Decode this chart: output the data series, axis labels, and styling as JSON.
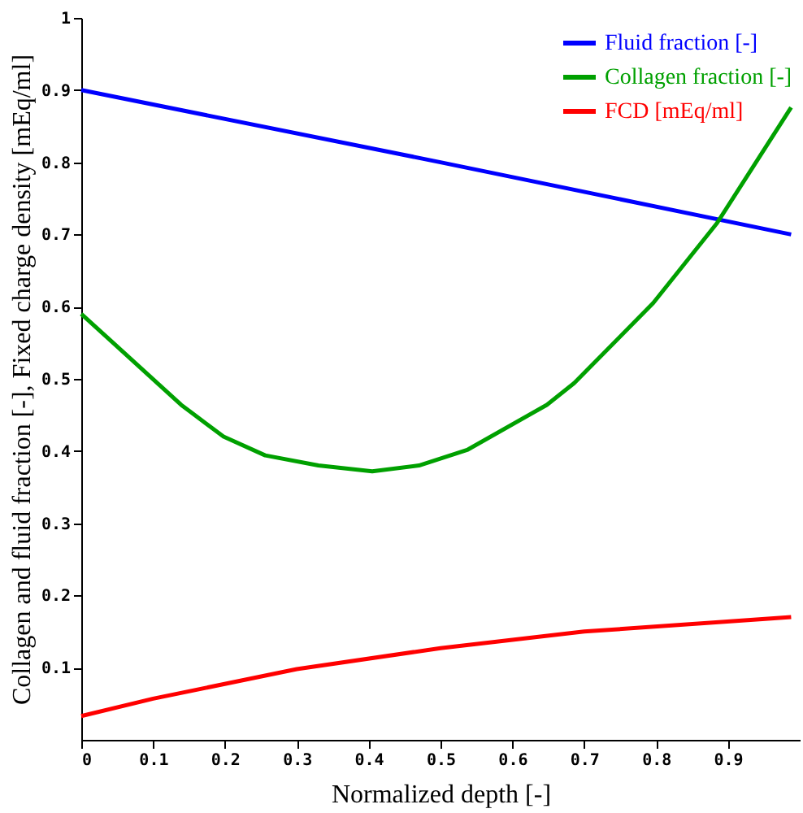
{
  "chart_data": {
    "type": "line",
    "xlabel": "Normalized depth [-]",
    "ylabel": "Collagen and fluid fraction [-], Fixed charge density [mEq/ml]",
    "xlim": [
      0,
      1
    ],
    "ylim": [
      0,
      1
    ],
    "xticks": [
      0,
      0.1,
      0.2,
      0.3,
      0.4,
      0.5,
      0.6,
      0.7,
      0.8,
      0.9
    ],
    "yticks": [
      0.1,
      0.2,
      0.3,
      0.4,
      0.5,
      0.6,
      0.7,
      0.8,
      0.9,
      1
    ],
    "grid": false,
    "legend": "top right",
    "marker": "none",
    "line_style": "solid",
    "series": [
      {
        "name": "Fluid fraction [-]",
        "color": "#0000ff",
        "x": [
          0,
          0.5,
          0.988
        ],
        "values": [
          0.9,
          0.8,
          0.7
        ]
      },
      {
        "name": "Collagen fraction [-]",
        "color": "#00a000",
        "x": [
          0,
          0.043,
          0.139,
          0.198,
          0.256,
          0.33,
          0.405,
          0.47,
          0.538,
          0.648,
          0.686,
          0.796,
          0.885,
          0.988
        ],
        "values": [
          0.59,
          0.551,
          0.464,
          0.42,
          0.394,
          0.38,
          0.372,
          0.38,
          0.402,
          0.464,
          0.494,
          0.605,
          0.716,
          0.876
        ]
      },
      {
        "name": "FCD [mEq/ml]",
        "color": "#ff0000",
        "x": [
          0,
          0.1,
          0.3,
          0.5,
          0.7,
          0.988
        ],
        "values": [
          0.033,
          0.057,
          0.098,
          0.127,
          0.15,
          0.17
        ]
      }
    ]
  }
}
